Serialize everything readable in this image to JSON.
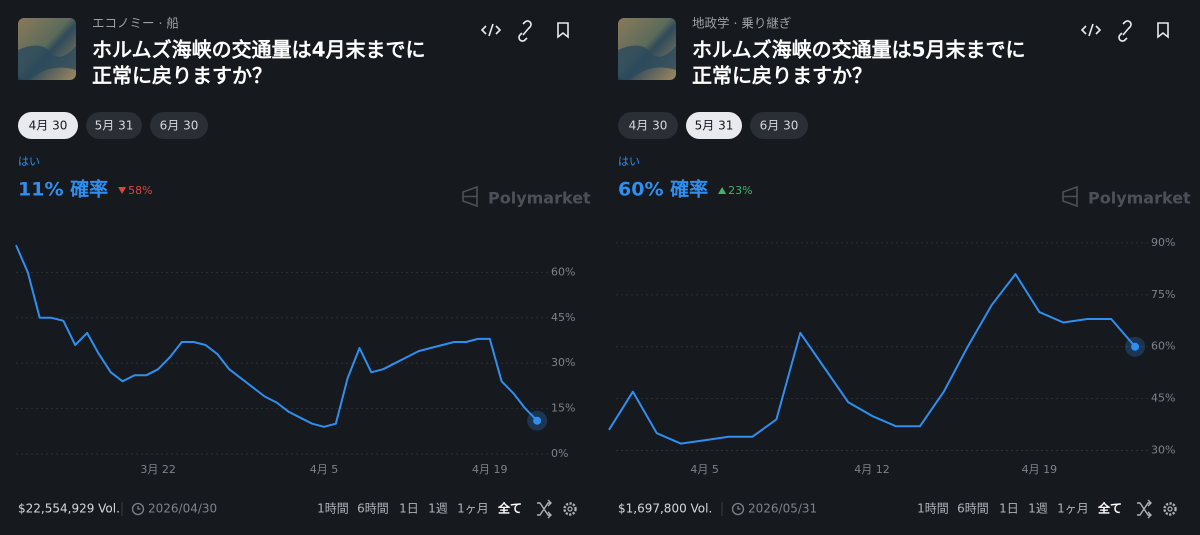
{
  "chart_data": [
    {
      "type": "line",
      "breadcrumb": "エコノミー · 船",
      "title": [
        "ホルムズ海峡の交通量は4月末までに",
        "正常に戻りますか？"
      ],
      "tabs": [
        "4月 30",
        "5月 31",
        "6月 30"
      ],
      "active_tab": 0,
      "headline": "11% 確率",
      "change": "58%",
      "change_direction": "down",
      "brand": "Polymarket",
      "x": [
        "03-10",
        "03-11",
        "03-12",
        "03-13",
        "03-14",
        "03-15",
        "03-16",
        "03-17",
        "03-18",
        "03-19",
        "03-20",
        "03-21",
        "03-22",
        "03-23",
        "03-24",
        "03-25",
        "03-26",
        "03-27",
        "03-28",
        "03-29",
        "03-30",
        "03-31",
        "04-01",
        "04-02",
        "04-03",
        "04-04",
        "04-05",
        "04-06",
        "04-07",
        "04-08",
        "04-09",
        "04-10",
        "04-11",
        "04-12",
        "04-13",
        "04-14",
        "04-15",
        "04-16",
        "04-17",
        "04-18",
        "04-19",
        "04-20",
        "04-21",
        "04-22",
        "04-23"
      ],
      "series": [
        {
          "name": "はい",
          "color": "#2f8ff0",
          "values": [
            69,
            60,
            45,
            45,
            44,
            36,
            40,
            33,
            27,
            24,
            26,
            26,
            28,
            32,
            37,
            37,
            36,
            33,
            28,
            25,
            22,
            19,
            17,
            14,
            12,
            10,
            9,
            10,
            25,
            35,
            27,
            28,
            30,
            32,
            34,
            35,
            36,
            37,
            37,
            38,
            38,
            24,
            20,
            15,
            11
          ]
        }
      ],
      "xlim": [
        "03-10",
        "04-24"
      ],
      "xticks": [
        {
          "value": "03-22",
          "label": "3月 22"
        },
        {
          "value": "04-05",
          "label": "4月 5"
        },
        {
          "value": "04-19",
          "label": "4月 19"
        }
      ],
      "ylim": [
        0,
        72
      ],
      "yticks": [
        {
          "value": 0,
          "label": "0%"
        },
        {
          "value": 15,
          "label": "15%"
        },
        {
          "value": 30,
          "label": "30%"
        },
        {
          "value": 45,
          "label": "45%"
        },
        {
          "value": 60,
          "label": "60%"
        }
      ],
      "grid": true,
      "volume": "$22,554,929 Vol.",
      "end_date": "2026/04/30",
      "timeframes": [
        "1時間",
        "6時間",
        "1日",
        "1週",
        "1ヶ月",
        "全て"
      ],
      "active_timeframe": 5
    },
    {
      "type": "line",
      "breadcrumb": "地政学 · 乗り継ぎ",
      "title": [
        "ホルムズ海峡の交通量は5月末までに",
        "正常に戻りますか？"
      ],
      "tabs": [
        "4月 30",
        "5月 31",
        "6月 30"
      ],
      "active_tab": 1,
      "headline": "60% 確率",
      "change": "23%",
      "change_direction": "up",
      "brand": "Polymarket",
      "x": [
        "04-01",
        "04-02",
        "04-03",
        "04-04",
        "04-05",
        "04-06",
        "04-07",
        "04-08",
        "04-09",
        "04-10",
        "04-11",
        "04-12",
        "04-13",
        "04-14",
        "04-15",
        "04-16",
        "04-17",
        "04-18",
        "04-19",
        "04-20",
        "04-21",
        "04-22",
        "04-23"
      ],
      "series": [
        {
          "name": "はい",
          "color": "#2f8ff0",
          "values": [
            36,
            47,
            35,
            32,
            33,
            34,
            34,
            39,
            64,
            54,
            44,
            40,
            37,
            37,
            47,
            60,
            72,
            81,
            70,
            67,
            68,
            68,
            60
          ]
        }
      ],
      "xlim": [
        "04-01",
        "04-24"
      ],
      "xticks": [
        {
          "value": "04-05",
          "label": "4月 5"
        },
        {
          "value": "04-12",
          "label": "4月 12"
        },
        {
          "value": "04-19",
          "label": "4月 19"
        }
      ],
      "ylim": [
        29,
        92
      ],
      "yticks": [
        {
          "value": 30,
          "label": "30%"
        },
        {
          "value": 45,
          "label": "45%"
        },
        {
          "value": 60,
          "label": "60%"
        },
        {
          "value": 75,
          "label": "75%"
        },
        {
          "value": 90,
          "label": "90%"
        }
      ],
      "grid": true,
      "volume": "$1,697,800 Vol.",
      "end_date": "2026/05/31",
      "timeframes": [
        "1時間",
        "6時間",
        "1日",
        "1週",
        "1ヶ月",
        "全て"
      ],
      "active_timeframe": 5
    }
  ]
}
